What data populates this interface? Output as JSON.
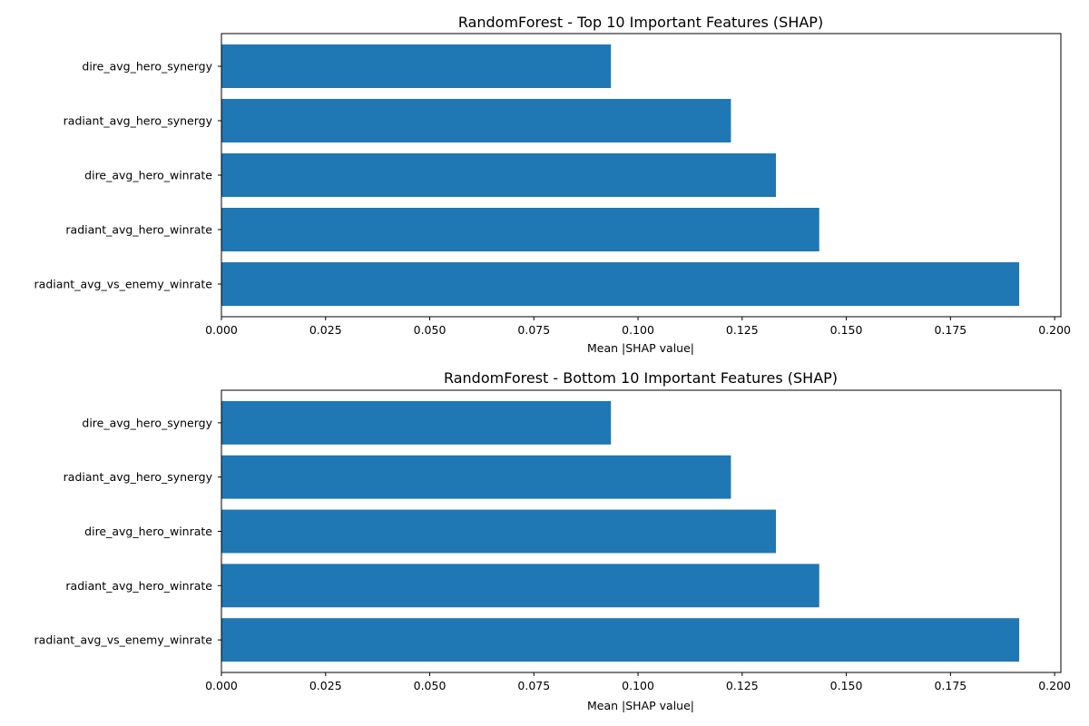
{
  "chart_data": [
    {
      "type": "bar",
      "orientation": "horizontal",
      "title": "RandomForest - Top 10 Important Features (SHAP)",
      "xlabel": "Mean |SHAP value|",
      "ylabel": "",
      "categories": [
        "dire_avg_hero_synergy",
        "radiant_avg_hero_synergy",
        "dire_avg_hero_winrate",
        "radiant_avg_hero_winrate",
        "radiant_avg_vs_enemy_winrate"
      ],
      "values": [
        0.0935,
        0.1223,
        0.1331,
        0.1435,
        0.1915
      ],
      "xlim": [
        0,
        0.2015
      ],
      "xticks": [
        "0.000",
        "0.025",
        "0.050",
        "0.075",
        "0.100",
        "0.125",
        "0.150",
        "0.175",
        "0.200"
      ],
      "color": "#1f77b4",
      "grid": false
    },
    {
      "type": "bar",
      "orientation": "horizontal",
      "title": "RandomForest - Bottom 10 Important Features (SHAP)",
      "xlabel": "Mean |SHAP value|",
      "ylabel": "",
      "categories": [
        "dire_avg_hero_synergy",
        "radiant_avg_hero_synergy",
        "dire_avg_hero_winrate",
        "radiant_avg_hero_winrate",
        "radiant_avg_vs_enemy_winrate"
      ],
      "values": [
        0.0935,
        0.1223,
        0.1331,
        0.1435,
        0.1915
      ],
      "xlim": [
        0,
        0.2015
      ],
      "xticks": [
        "0.000",
        "0.025",
        "0.050",
        "0.075",
        "0.100",
        "0.125",
        "0.150",
        "0.175",
        "0.200"
      ],
      "color": "#1f77b4",
      "grid": false
    }
  ]
}
